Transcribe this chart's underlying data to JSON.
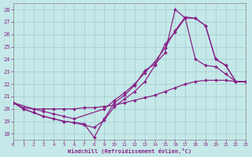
{
  "background_color": "#c5e8e8",
  "grid_color": "#9fcece",
  "line_color": "#882288",
  "xlim": [
    0,
    23
  ],
  "ylim": [
    17.5,
    28.5
  ],
  "xtick_vals": [
    0,
    1,
    2,
    3,
    4,
    5,
    6,
    7,
    8,
    9,
    10,
    11,
    12,
    13,
    14,
    15,
    16,
    17,
    18,
    19,
    20,
    21,
    22,
    23
  ],
  "ytick_vals": [
    18,
    19,
    20,
    21,
    22,
    23,
    24,
    25,
    26,
    27,
    28
  ],
  "xlabel": "Windchill (Refroidissement éolien,°C)",
  "line1_x": [
    0,
    1,
    2,
    3,
    4,
    5,
    6,
    7,
    8,
    9,
    10,
    11,
    12,
    13,
    14,
    15,
    16,
    17,
    18,
    19,
    20,
    21,
    22,
    23
  ],
  "line1_y": [
    20.5,
    20.0,
    19.7,
    19.4,
    19.2,
    19.0,
    18.9,
    18.8,
    17.7,
    19.2,
    20.5,
    21.1,
    21.9,
    23.1,
    23.6,
    24.5,
    28.0,
    27.3,
    24.0,
    23.5,
    23.4,
    22.8,
    22.2,
    22.2
  ],
  "line2_x": [
    0,
    2,
    3,
    4,
    5,
    6,
    9,
    10,
    11,
    12,
    13,
    14,
    15,
    16,
    17,
    18,
    19,
    20,
    21,
    22,
    23
  ],
  "line2_y": [
    20.5,
    20.0,
    19.8,
    19.6,
    19.4,
    19.2,
    20.0,
    20.7,
    21.3,
    22.0,
    22.9,
    23.8,
    24.9,
    26.3,
    27.4,
    27.3,
    26.7,
    24.0,
    23.5,
    22.2,
    22.2
  ],
  "line3_x": [
    0,
    1,
    2,
    3,
    4,
    5,
    6,
    7,
    8,
    9,
    10,
    11,
    12,
    13,
    14,
    15,
    16,
    17,
    18,
    19,
    20,
    21,
    22,
    23
  ],
  "line3_y": [
    20.5,
    20.1,
    20.0,
    20.0,
    20.0,
    20.0,
    20.0,
    20.1,
    20.1,
    20.2,
    20.3,
    20.5,
    20.7,
    20.9,
    21.1,
    21.4,
    21.7,
    22.0,
    22.2,
    22.3,
    22.3,
    22.3,
    22.2,
    22.2
  ],
  "line4_x": [
    0,
    1,
    2,
    3,
    4,
    5,
    6,
    7,
    8,
    9,
    10,
    11,
    12,
    13,
    14,
    15,
    16,
    17,
    18,
    19,
    20,
    21,
    22,
    23
  ],
  "line4_y": [
    20.5,
    20.0,
    19.7,
    19.4,
    19.2,
    19.0,
    18.9,
    18.7,
    18.5,
    19.1,
    20.2,
    20.8,
    21.4,
    22.2,
    23.5,
    25.2,
    26.2,
    27.3,
    27.3,
    26.7,
    24.0,
    23.5,
    22.2,
    22.2
  ]
}
